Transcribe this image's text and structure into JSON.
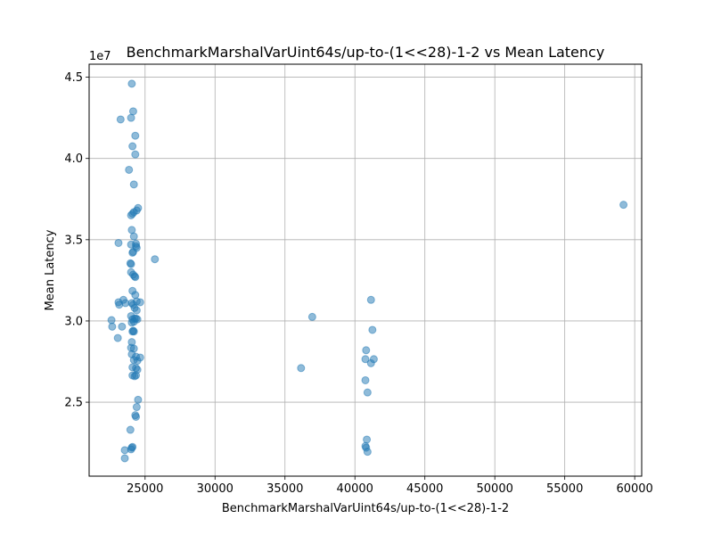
{
  "chart_data": {
    "type": "scatter",
    "title": "BenchmarkMarshalVarUint64s/up-to-(1<<28)-1-2 vs Mean Latency",
    "xlabel": "BenchmarkMarshalVarUint64s/up-to-(1<<28)-1-2",
    "ylabel": "Mean Latency",
    "y_offset_label": "1e7",
    "xlim": [
      21000,
      60500
    ],
    "ylim": [
      20450000,
      45800000
    ],
    "x_ticks": [
      25000,
      30000,
      35000,
      40000,
      45000,
      50000,
      55000,
      60000
    ],
    "x_tick_labels": [
      "25000",
      "30000",
      "35000",
      "40000",
      "45000",
      "50000",
      "55000",
      "60000"
    ],
    "y_ticks": [
      25000000,
      30000000,
      35000000,
      40000000,
      45000000
    ],
    "y_tick_labels": [
      "2.5",
      "3.0",
      "3.5",
      "4.0",
      "4.5"
    ],
    "grid": true,
    "point_color": "#1f77b4",
    "point_alpha": 0.5,
    "points": [
      [
        24050,
        44600000
      ],
      [
        24150,
        42900000
      ],
      [
        23250,
        42400000
      ],
      [
        24000,
        42500000
      ],
      [
        24300,
        41400000
      ],
      [
        24100,
        40750000
      ],
      [
        24300,
        40250000
      ],
      [
        23850,
        39300000
      ],
      [
        24200,
        38400000
      ],
      [
        24500,
        36950000
      ],
      [
        24400,
        36800000
      ],
      [
        24200,
        36700000
      ],
      [
        24000,
        36500000
      ],
      [
        24100,
        36600000
      ],
      [
        24050,
        35600000
      ],
      [
        24200,
        35200000
      ],
      [
        23100,
        34800000
      ],
      [
        24000,
        34700000
      ],
      [
        24350,
        34750000
      ],
      [
        24350,
        34600000
      ],
      [
        24400,
        34500000
      ],
      [
        24100,
        34200000
      ],
      [
        24150,
        34250000
      ],
      [
        25700,
        33800000
      ],
      [
        23950,
        33550000
      ],
      [
        24000,
        33500000
      ],
      [
        24000,
        33000000
      ],
      [
        24150,
        32850000
      ],
      [
        24250,
        32750000
      ],
      [
        24300,
        32700000
      ],
      [
        24100,
        31850000
      ],
      [
        24300,
        31600000
      ],
      [
        23450,
        31300000
      ],
      [
        23100,
        31150000
      ],
      [
        23150,
        31000000
      ],
      [
        23600,
        31100000
      ],
      [
        24050,
        31100000
      ],
      [
        24400,
        31200000
      ],
      [
        24650,
        31150000
      ],
      [
        24150,
        31000000
      ],
      [
        24250,
        30800000
      ],
      [
        24400,
        30650000
      ],
      [
        24000,
        30300000
      ],
      [
        24250,
        30150000
      ],
      [
        24100,
        30100000
      ],
      [
        24350,
        30150000
      ],
      [
        24450,
        30100000
      ],
      [
        24050,
        29900000
      ],
      [
        24200,
        29950000
      ],
      [
        22600,
        30050000
      ],
      [
        22650,
        29650000
      ],
      [
        23350,
        29650000
      ],
      [
        24150,
        29400000
      ],
      [
        24200,
        29350000
      ],
      [
        24100,
        29350000
      ],
      [
        23050,
        28950000
      ],
      [
        24050,
        28700000
      ],
      [
        24000,
        28350000
      ],
      [
        24200,
        28300000
      ],
      [
        24050,
        27950000
      ],
      [
        24350,
        27800000
      ],
      [
        24650,
        27750000
      ],
      [
        24200,
        27600000
      ],
      [
        24450,
        27550000
      ],
      [
        24100,
        27150000
      ],
      [
        24350,
        27100000
      ],
      [
        24450,
        27000000
      ],
      [
        24250,
        26600000
      ],
      [
        24100,
        26650000
      ],
      [
        24350,
        26650000
      ],
      [
        24500,
        25150000
      ],
      [
        24400,
        24700000
      ],
      [
        24300,
        24200000
      ],
      [
        24350,
        24100000
      ],
      [
        23950,
        23300000
      ],
      [
        24050,
        22200000
      ],
      [
        24100,
        22250000
      ],
      [
        24000,
        22100000
      ],
      [
        23550,
        22050000
      ],
      [
        23550,
        21550000
      ],
      [
        36950,
        30250000
      ],
      [
        36150,
        27100000
      ],
      [
        41150,
        31300000
      ],
      [
        41250,
        29450000
      ],
      [
        40800,
        28200000
      ],
      [
        40750,
        27650000
      ],
      [
        41150,
        27400000
      ],
      [
        41350,
        27650000
      ],
      [
        40750,
        26350000
      ],
      [
        40900,
        25600000
      ],
      [
        40850,
        22700000
      ],
      [
        40750,
        22300000
      ],
      [
        40800,
        22200000
      ],
      [
        40900,
        21950000
      ],
      [
        59200,
        37150000
      ]
    ]
  }
}
